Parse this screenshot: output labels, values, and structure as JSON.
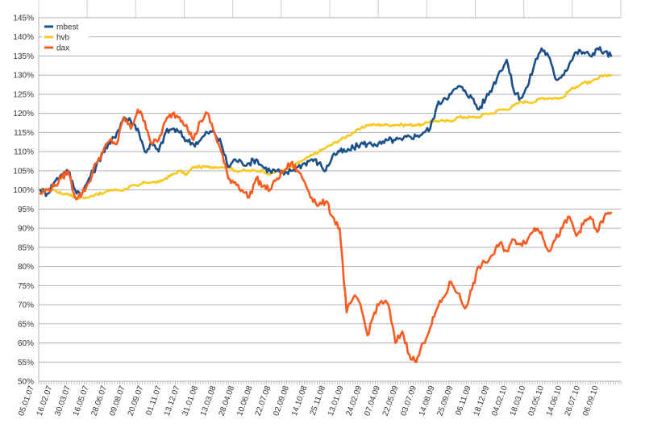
{
  "chart_data": {
    "type": "line",
    "title": "",
    "xlabel": "",
    "ylabel": "",
    "ylim": [
      0.5,
      1.45
    ],
    "grid": true,
    "legend_position": "top-left",
    "y_ticks": [
      "50%",
      "55%",
      "60%",
      "65%",
      "70%",
      "75%",
      "80%",
      "85%",
      "90%",
      "95%",
      "100%",
      "105%",
      "110%",
      "115%",
      "120%",
      "125%",
      "130%",
      "135%",
      "140%",
      "145%"
    ],
    "x_ticks": [
      "05.01.07",
      "16.02.07",
      "30.03.07",
      "16.05.07",
      "28.06.07",
      "09.08.07",
      "20.09.07",
      "01.11.07",
      "13.12.07",
      "31.01.08",
      "13.03.08",
      "28.04.08",
      "10.06.08",
      "22.07.08",
      "02.09.08",
      "14.10.08",
      "25.11.08",
      "13.01.09",
      "24.02.09",
      "07.04.09",
      "22.05.09",
      "03.07.09",
      "14.08.09",
      "25.09.09",
      "06.11.09",
      "18.12.09",
      "04.02.10",
      "18.03.10",
      "03.05.10",
      "14.06.10",
      "26.07.10",
      "06.09.10"
    ],
    "series": [
      {
        "name": "mbest",
        "color": "#1a4f8a",
        "values": [
          1.0,
          0.99,
          1.02,
          1.04,
          1.05,
          1.0,
          0.99,
          1.03,
          1.06,
          1.1,
          1.12,
          1.15,
          1.19,
          1.18,
          1.16,
          1.1,
          1.12,
          1.1,
          1.15,
          1.16,
          1.15,
          1.13,
          1.12,
          1.13,
          1.15,
          1.15,
          1.12,
          1.06,
          1.08,
          1.07,
          1.07,
          1.08,
          1.06,
          1.05,
          1.05,
          1.04,
          1.05,
          1.06,
          1.07,
          1.08,
          1.07,
          1.05,
          1.09,
          1.1,
          1.1,
          1.11,
          1.12,
          1.12,
          1.12,
          1.12,
          1.13,
          1.13,
          1.13,
          1.14,
          1.14,
          1.15,
          1.16,
          1.22,
          1.24,
          1.25,
          1.27,
          1.26,
          1.24,
          1.21,
          1.24,
          1.27,
          1.31,
          1.34,
          1.26,
          1.24,
          1.27,
          1.33,
          1.37,
          1.35,
          1.29,
          1.3,
          1.33,
          1.36,
          1.36,
          1.35,
          1.37,
          1.36,
          1.35
        ]
      },
      {
        "name": "hvb",
        "color": "#f7c81e",
        "values": [
          1.0,
          1.0,
          1.0,
          0.99,
          0.99,
          0.98,
          0.98,
          0.98,
          0.99,
          0.99,
          1.0,
          1.0,
          1.0,
          1.01,
          1.01,
          1.02,
          1.02,
          1.02,
          1.03,
          1.04,
          1.05,
          1.04,
          1.06,
          1.06,
          1.06,
          1.06,
          1.06,
          1.06,
          1.05,
          1.05,
          1.05,
          1.05,
          1.05,
          1.04,
          1.05,
          1.05,
          1.06,
          1.07,
          1.08,
          1.09,
          1.1,
          1.11,
          1.12,
          1.13,
          1.14,
          1.15,
          1.16,
          1.17,
          1.17,
          1.17,
          1.17,
          1.17,
          1.17,
          1.17,
          1.17,
          1.17,
          1.18,
          1.18,
          1.18,
          1.18,
          1.19,
          1.19,
          1.19,
          1.19,
          1.2,
          1.2,
          1.21,
          1.21,
          1.22,
          1.23,
          1.23,
          1.23,
          1.24,
          1.24,
          1.24,
          1.24,
          1.26,
          1.27,
          1.28,
          1.28,
          1.29,
          1.3,
          1.3
        ]
      },
      {
        "name": "dax",
        "color": "#fa5a1e",
        "values": [
          0.99,
          1.0,
          1.01,
          1.03,
          1.05,
          0.98,
          0.99,
          1.02,
          1.07,
          1.1,
          1.13,
          1.12,
          1.19,
          1.16,
          1.21,
          1.18,
          1.12,
          1.13,
          1.18,
          1.2,
          1.19,
          1.17,
          1.13,
          1.18,
          1.2,
          1.15,
          1.1,
          1.03,
          1.02,
          1.0,
          0.98,
          1.03,
          1.01,
          1.0,
          1.03,
          1.05,
          1.07,
          1.05,
          1.02,
          0.98,
          0.96,
          0.97,
          0.93,
          0.9,
          0.68,
          0.72,
          0.7,
          0.62,
          0.68,
          0.71,
          0.7,
          0.6,
          0.63,
          0.57,
          0.55,
          0.6,
          0.64,
          0.69,
          0.72,
          0.76,
          0.73,
          0.69,
          0.74,
          0.8,
          0.81,
          0.83,
          0.86,
          0.84,
          0.87,
          0.86,
          0.87,
          0.9,
          0.89,
          0.84,
          0.87,
          0.9,
          0.93,
          0.88,
          0.91,
          0.93,
          0.89,
          0.93,
          0.94
        ]
      }
    ]
  }
}
